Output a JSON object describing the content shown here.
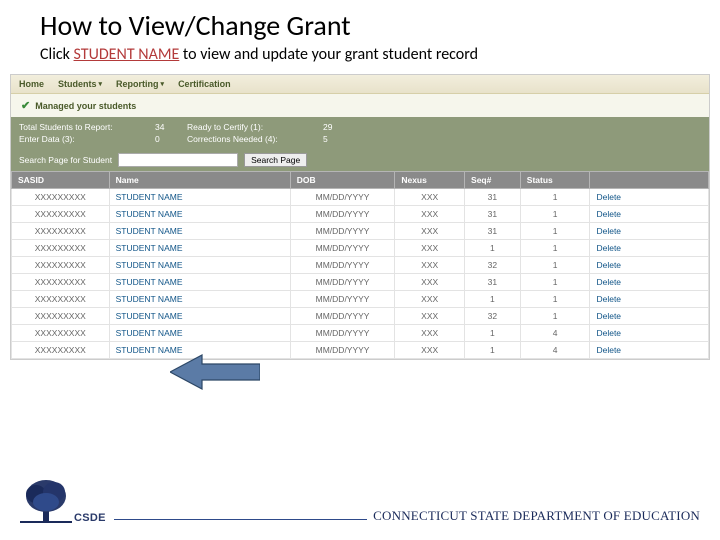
{
  "title": "How to View/Change Grant",
  "subtitle_pre": "Click ",
  "subtitle_hl": "STUDENT NAME",
  "subtitle_post": " to view and update your grant student record",
  "nav": {
    "home": "Home",
    "students": "Students",
    "reporting": "Reporting",
    "cert": "Certification"
  },
  "banner": "Managed your students",
  "stats": {
    "total_lbl": "Total Students to Report:",
    "total_val": "34",
    "ready_lbl": "Ready to Certify (1):",
    "ready_val": "29",
    "enter_lbl": "Enter Data (3):",
    "enter_val": "0",
    "corr_lbl": "Corrections Needed (4):",
    "corr_val": "5"
  },
  "search": {
    "label": "Search Page for Student",
    "placeholder": "",
    "button": "Search Page"
  },
  "columns": {
    "sasid": "SASID",
    "name": "Name",
    "dob": "DOB",
    "nexus": "Nexus",
    "seq": "Seq#",
    "status": "Status",
    "blank": ""
  },
  "rows": [
    {
      "sasid": "XXXXXXXXX",
      "name": "STUDENT NAME",
      "dob": "MM/DD/YYYY",
      "nexus": "XXX",
      "seq": "31",
      "status": "1",
      "action": "Delete"
    },
    {
      "sasid": "XXXXXXXXX",
      "name": "STUDENT NAME",
      "dob": "MM/DD/YYYY",
      "nexus": "XXX",
      "seq": "31",
      "status": "1",
      "action": "Delete"
    },
    {
      "sasid": "XXXXXXXXX",
      "name": "STUDENT NAME",
      "dob": "MM/DD/YYYY",
      "nexus": "XXX",
      "seq": "31",
      "status": "1",
      "action": "Delete"
    },
    {
      "sasid": "XXXXXXXXX",
      "name": "STUDENT NAME",
      "dob": "MM/DD/YYYY",
      "nexus": "XXX",
      "seq": "1",
      "status": "1",
      "action": "Delete"
    },
    {
      "sasid": "XXXXXXXXX",
      "name": "STUDENT NAME",
      "dob": "MM/DD/YYYY",
      "nexus": "XXX",
      "seq": "32",
      "status": "1",
      "action": "Delete"
    },
    {
      "sasid": "XXXXXXXXX",
      "name": "STUDENT NAME",
      "dob": "MM/DD/YYYY",
      "nexus": "XXX",
      "seq": "31",
      "status": "1",
      "action": "Delete"
    },
    {
      "sasid": "XXXXXXXXX",
      "name": "STUDENT NAME",
      "dob": "MM/DD/YYYY",
      "nexus": "XXX",
      "seq": "1",
      "status": "1",
      "action": "Delete"
    },
    {
      "sasid": "XXXXXXXXX",
      "name": "STUDENT NAME",
      "dob": "MM/DD/YYYY",
      "nexus": "XXX",
      "seq": "32",
      "status": "1",
      "action": "Delete"
    },
    {
      "sasid": "XXXXXXXXX",
      "name": "STUDENT NAME",
      "dob": "MM/DD/YYYY",
      "nexus": "XXX",
      "seq": "1",
      "status": "4",
      "action": "Delete"
    },
    {
      "sasid": "XXXXXXXXX",
      "name": "STUDENT NAME",
      "dob": "MM/DD/YYYY",
      "nexus": "XXX",
      "seq": "1",
      "status": "4",
      "action": "Delete"
    }
  ],
  "footer": {
    "csde": "CSDE",
    "dept": "CONNECTICUT STATE DEPARTMENT OF EDUCATION"
  },
  "colors": {
    "hl": "#b33a3a",
    "navbg": "#e8e2ca",
    "stats": "#8e9a7a",
    "th": "#8a8a8a",
    "link": "#115588",
    "arrowfill": "#5b7ba6",
    "arrowstroke": "#2c4766"
  },
  "col_widths": [
    "14%",
    "26%",
    "15%",
    "10%",
    "8%",
    "10%",
    "17%"
  ]
}
